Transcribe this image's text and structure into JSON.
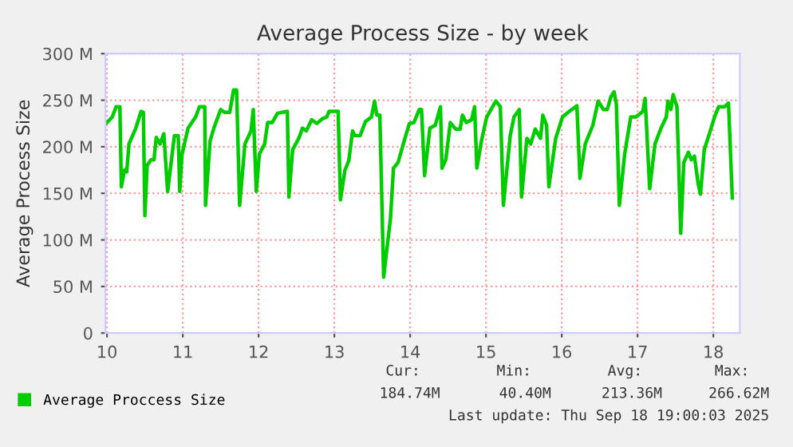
{
  "chart_data": {
    "type": "line",
    "title": "Average Process Size - by week",
    "ylabel": "Average Process Size",
    "xlim": [
      9.98,
      18.35
    ],
    "xticks": [
      10,
      11,
      12,
      13,
      14,
      15,
      16,
      17,
      18
    ],
    "ylim": [
      0,
      300
    ],
    "yticks": [
      {
        "value": 0,
        "label": "0"
      },
      {
        "value": 50,
        "label": "50 M"
      },
      {
        "value": 100,
        "label": "100 M"
      },
      {
        "value": 150,
        "label": "150 M"
      },
      {
        "value": 200,
        "label": "200 M"
      },
      {
        "value": 250,
        "label": "250 M"
      },
      {
        "value": 300,
        "label": "300 M"
      }
    ],
    "grid": true,
    "legend": "bottom",
    "marker": "none",
    "line_style": "solid",
    "series": [
      {
        "name": "Average Proccess Size",
        "color": "#00cc00",
        "x": [
          10.0,
          10.07,
          10.12,
          10.17,
          10.19,
          10.23,
          10.26,
          10.29,
          10.38,
          10.45,
          10.48,
          10.5,
          10.53,
          10.58,
          10.62,
          10.65,
          10.7,
          10.75,
          10.8,
          10.89,
          10.94,
          10.96,
          10.99,
          11.07,
          11.17,
          11.22,
          11.29,
          11.3,
          11.36,
          11.41,
          11.5,
          11.55,
          11.62,
          11.67,
          11.71,
          11.75,
          11.82,
          11.9,
          11.93,
          11.97,
          12.01,
          12.08,
          12.12,
          12.18,
          12.25,
          12.38,
          12.4,
          12.45,
          12.53,
          12.58,
          12.63,
          12.7,
          12.77,
          12.84,
          12.9,
          12.93,
          13.05,
          13.08,
          13.14,
          13.19,
          13.24,
          13.27,
          13.34,
          13.41,
          13.49,
          13.53,
          13.56,
          13.6,
          13.65,
          13.74,
          13.78,
          13.84,
          13.92,
          13.99,
          14.05,
          14.12,
          14.15,
          14.19,
          14.26,
          14.33,
          14.4,
          14.42,
          14.47,
          14.53,
          14.6,
          14.66,
          14.69,
          14.74,
          14.81,
          14.85,
          14.88,
          14.94,
          15.01,
          15.13,
          15.19,
          15.23,
          15.32,
          15.37,
          15.44,
          15.47,
          15.54,
          15.59,
          15.65,
          15.72,
          15.75,
          15.8,
          15.83,
          15.92,
          16.01,
          16.1,
          16.2,
          16.24,
          16.31,
          16.41,
          16.48,
          16.55,
          16.6,
          16.65,
          16.69,
          16.72,
          16.76,
          16.83,
          16.91,
          16.98,
          17.07,
          17.1,
          17.16,
          17.23,
          17.31,
          17.38,
          17.4,
          17.44,
          17.47,
          17.52,
          17.57,
          17.61,
          17.67,
          17.71,
          17.75,
          17.8,
          17.83,
          17.88,
          17.94,
          18.02,
          18.07,
          18.15,
          18.2,
          18.25
        ],
        "values": [
          226,
          232,
          243,
          243,
          157,
          175,
          173,
          203,
          220,
          238,
          237,
          126,
          180,
          186,
          186,
          210,
          203,
          214,
          152,
          212,
          212,
          152,
          192,
          220,
          232,
          243,
          243,
          137,
          206,
          220,
          240,
          237,
          237,
          261,
          261,
          137,
          203,
          217,
          240,
          152,
          192,
          203,
          226,
          226,
          236,
          238,
          146,
          197,
          209,
          220,
          217,
          229,
          225,
          230,
          232,
          238,
          238,
          143,
          175,
          185,
          217,
          212,
          212,
          227,
          232,
          249,
          234,
          234,
          60,
          123,
          177,
          183,
          206,
          225,
          226,
          240,
          240,
          169,
          220,
          223,
          243,
          177,
          186,
          226,
          219,
          219,
          234,
          226,
          229,
          243,
          177,
          206,
          232,
          249,
          243,
          137,
          212,
          232,
          240,
          146,
          209,
          203,
          219,
          209,
          234,
          223,
          157,
          209,
          232,
          238,
          244,
          166,
          203,
          223,
          249,
          240,
          240,
          254,
          259,
          246,
          137,
          192,
          232,
          232,
          238,
          252,
          155,
          203,
          220,
          232,
          249,
          240,
          256,
          243,
          107,
          183,
          194,
          186,
          190,
          160,
          149,
          197,
          212,
          233,
          243,
          243,
          247,
          145
        ]
      }
    ],
    "annotations": [
      "Cur:",
      "Min:",
      "Avg:",
      "Max:",
      "184.74M",
      "40.40M",
      "213.36M",
      "266.62M",
      "Last update: Thu Sep 18 19:00:03 2025"
    ]
  }
}
